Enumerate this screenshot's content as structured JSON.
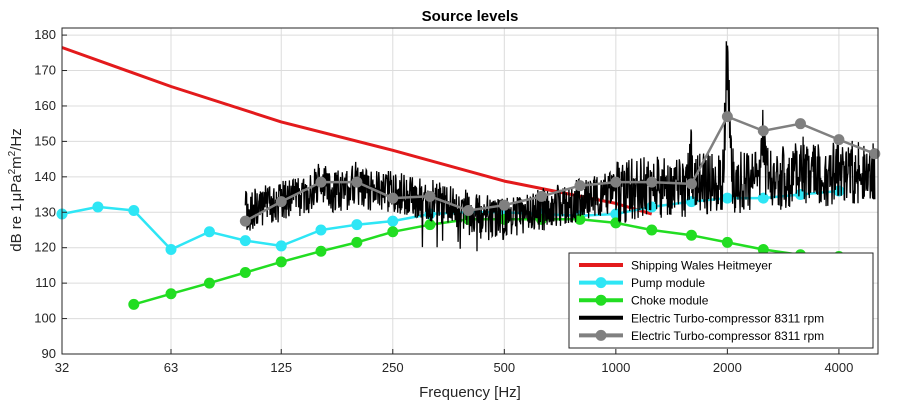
{
  "chart_data": {
    "type": "line",
    "title": "Source levels",
    "xlabel": "Frequency [Hz]",
    "ylabel": {
      "prefix": "dB re 1",
      "mu": "μ",
      "unit1": "Pa",
      "sup1": "2",
      "unit2": "m",
      "sup2": "2",
      "suffix": "/Hz"
    },
    "xscale": "log",
    "xlim": [
      32,
      5100
    ],
    "ylim": [
      90,
      182
    ],
    "grid": true,
    "legend_position": "bottom-right",
    "x_ticks": [
      32,
      63,
      125,
      250,
      500,
      1000,
      2000,
      4000
    ],
    "x_tick_labels": [
      "32",
      "63",
      "125",
      "250",
      "500",
      "1000",
      "2000",
      "4000"
    ],
    "y_ticks": [
      90,
      100,
      110,
      120,
      130,
      140,
      150,
      160,
      170,
      180
    ],
    "y_tick_labels": [
      "90",
      "100",
      "110",
      "120",
      "130",
      "140",
      "150",
      "160",
      "170",
      "180"
    ],
    "series": [
      {
        "name": "Shipping Wales Heitmeyer",
        "color": "#e31a1c",
        "style": "line",
        "x": [
          32,
          63,
          125,
          250,
          500,
          1000,
          1250
        ],
        "y": [
          176.5,
          165.5,
          155.5,
          147.5,
          138.8,
          132.5,
          129.5
        ]
      },
      {
        "name": "Pump module",
        "color": "#2ee6f5",
        "style": "line-marker",
        "x": [
          32,
          40,
          50,
          63,
          80,
          100,
          125,
          160,
          200,
          250,
          315,
          400,
          500,
          630,
          800,
          1000,
          1250,
          1600,
          2000,
          2500,
          3150,
          4000
        ],
        "y": [
          129.5,
          131.5,
          130.5,
          119.5,
          124.5,
          122,
          120.5,
          125,
          126.5,
          127.5,
          129.5,
          130,
          130,
          129.5,
          129,
          129.5,
          131.5,
          133,
          134,
          134,
          135,
          136
        ]
      },
      {
        "name": "Choke module",
        "color": "#22dd22",
        "style": "line-marker",
        "x": [
          50,
          63,
          80,
          100,
          125,
          160,
          200,
          250,
          315,
          400,
          500,
          630,
          800,
          1000,
          1250,
          1600,
          2000,
          2500,
          3150,
          4000
        ],
        "y": [
          104,
          107,
          110,
          113,
          116,
          119,
          121.5,
          124.5,
          126.5,
          128,
          128,
          128,
          128,
          127,
          125,
          123.5,
          121.5,
          119.5,
          118,
          117.5
        ]
      },
      {
        "name": "Electric Turbo-compressor 8311 rpm",
        "color": "#000000",
        "style": "noisy-line",
        "x_range": [
          100,
          5000
        ],
        "note": "narrowband spectrum, peaks near 2000 Hz (~182 dB) and 2500 Hz (~158 dB)"
      },
      {
        "name": "Electric Turbo-compressor 8311 rpm",
        "color": "#808080",
        "style": "line-marker",
        "x": [
          100,
          125,
          160,
          200,
          250,
          315,
          400,
          500,
          630,
          800,
          1000,
          1250,
          1600,
          2000,
          2500,
          3150,
          4000,
          5000
        ],
        "y": [
          127.5,
          133,
          138.5,
          138.5,
          134,
          134.5,
          130.5,
          132,
          134.5,
          137.5,
          138.5,
          138.5,
          138,
          157,
          153,
          155,
          150.5,
          146.5
        ]
      }
    ]
  }
}
